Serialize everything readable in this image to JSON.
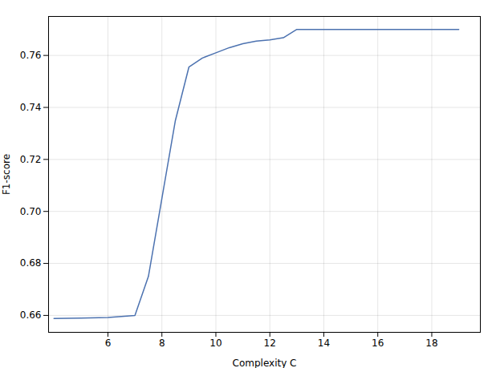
{
  "chart_data": {
    "type": "line",
    "x": [
      4,
      5,
      6,
      7,
      7.5,
      8,
      8.5,
      9,
      9.5,
      10,
      10.5,
      11,
      11.5,
      12,
      12.5,
      13,
      13.5,
      14,
      15,
      16,
      17,
      18,
      19
    ],
    "values": [
      0.6588,
      0.659,
      0.6592,
      0.66,
      0.675,
      0.705,
      0.735,
      0.7555,
      0.759,
      0.761,
      0.763,
      0.7645,
      0.7655,
      0.766,
      0.7668,
      0.77,
      0.77,
      0.77,
      0.77,
      0.77,
      0.77,
      0.77,
      0.77
    ],
    "color": "#4c72b0",
    "xlabel": "Complexity C",
    "ylabel": "F1-score",
    "xlim": [
      3.8,
      19.8
    ],
    "ylim": [
      0.6535,
      0.775
    ],
    "xticks": [
      6,
      8,
      10,
      12,
      14,
      16,
      18
    ],
    "yticks": [
      0.66,
      0.68,
      {
        "value": 0.7,
        "label": "0.70"
      },
      0.72,
      0.74,
      0.76
    ],
    "grid": true
  }
}
